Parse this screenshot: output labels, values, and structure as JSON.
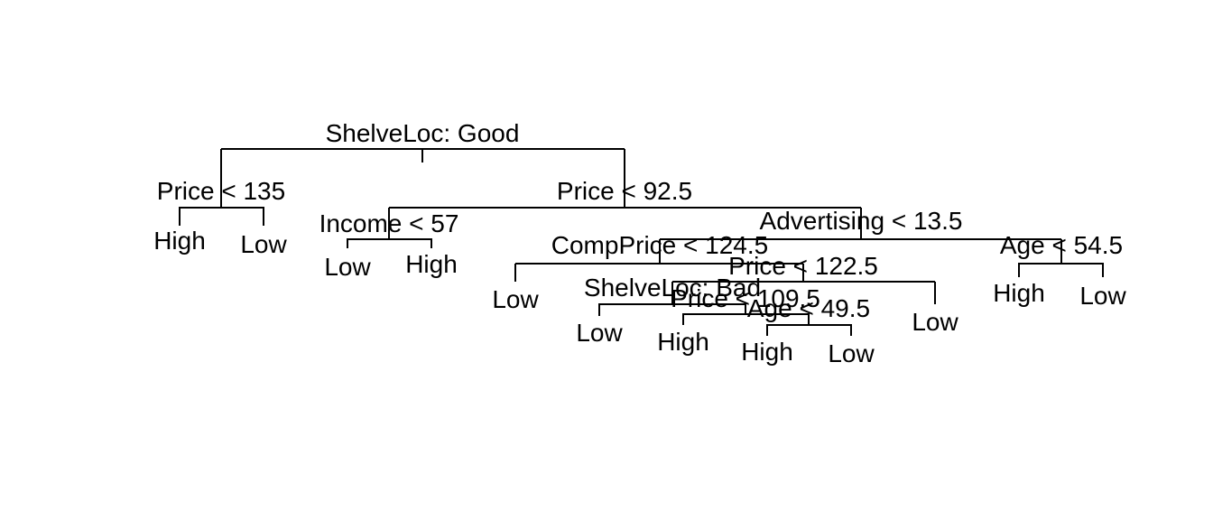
{
  "tree": {
    "splits": {
      "root": "ShelveLoc: Good",
      "price_135": "Price < 135",
      "price_92_5": "Price < 92.5",
      "income_57": "Income < 57",
      "advertising_13_5": "Advertising < 13.5",
      "compprice_124_5": "CompPrice < 124.5",
      "age_54_5": "Age < 54.5",
      "price_122_5": "Price < 122.5",
      "shelveloc_bad": "ShelveLoc: Bad",
      "price_109_5": "Price < 109.5",
      "age_49_5": "Age < 49.5"
    },
    "leaves": {
      "price_135_left": "High",
      "price_135_right": "Low",
      "income_57_left": "Low",
      "income_57_right": "High",
      "compprice_124_5_left": "Low",
      "shelveloc_bad_left": "Low",
      "price_109_5_left": "High",
      "age_49_5_left": "High",
      "age_49_5_right": "Low",
      "price_122_5_right": "Low",
      "age_54_5_left": "High",
      "age_54_5_right": "Low"
    }
  }
}
